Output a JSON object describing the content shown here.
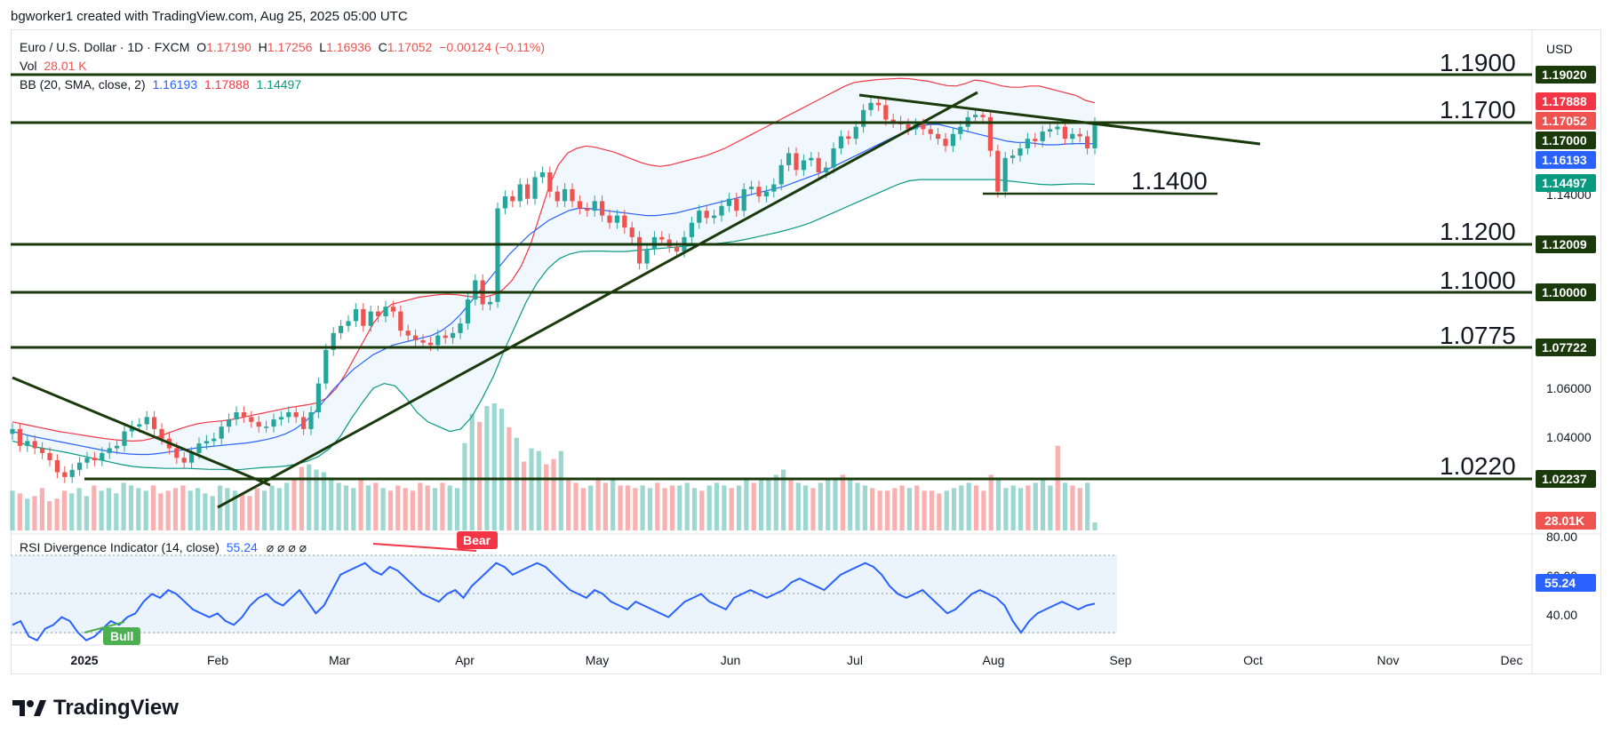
{
  "header": {
    "text": "bgworker1 created with TradingView.com, Aug 25, 2025 05:00 UTC"
  },
  "legend": {
    "symbol": "Euro / U.S. Dollar · 1D · FXCM",
    "o_label": "O",
    "o": "1.17190",
    "h_label": "H",
    "h": "1.17256",
    "l_label": "L",
    "l": "1.16936",
    "c_label": "C",
    "c": "1.17052",
    "change": "−0.00124 (−0.11%)",
    "vol_label": "Vol",
    "vol": "28.01 K",
    "bb_label": "BB (20, SMA, close, 2)",
    "bb_mid": "1.16193",
    "bb_up": "1.17888",
    "bb_low": "1.14497"
  },
  "rsi_legend": {
    "label": "RSI Divergence Indicator (14, close)",
    "value": "55.24",
    "marks": "⌀ ⌀ ⌀ ⌀"
  },
  "footer": {
    "brand": "TradingView"
  },
  "colors": {
    "up": "#26a69a",
    "down": "#ef5350",
    "bb_mid": "#2962ff",
    "bb_up": "#f23645",
    "bb_low": "#089981",
    "line": "#1b3a0c",
    "rsi": "#2962ff"
  },
  "chart_data": {
    "type": "candlestick",
    "currency": "USD",
    "y_ticks": [
      "1.14000",
      "1.06000",
      "1.04000"
    ],
    "x_labels": [
      "2025",
      "Feb",
      "Mar",
      "Apr",
      "May",
      "Jun",
      "Jul",
      "Aug",
      "Sep",
      "Oct",
      "Nov",
      "Dec"
    ],
    "closes": [
      1.043,
      1.036,
      1.038,
      1.035,
      1.033,
      1.03,
      1.025,
      1.023,
      1.026,
      1.029,
      1.031,
      1.03,
      1.033,
      1.035,
      1.036,
      1.042,
      1.044,
      1.045,
      1.048,
      1.043,
      1.039,
      1.035,
      1.031,
      1.029,
      1.033,
      1.037,
      1.038,
      1.039,
      1.044,
      1.047,
      1.05,
      1.048,
      1.046,
      1.044,
      1.044,
      1.047,
      1.048,
      1.05,
      1.048,
      1.043,
      1.05,
      1.062,
      1.076,
      1.083,
      1.086,
      1.088,
      1.093,
      1.086,
      1.092,
      1.09,
      1.094,
      1.092,
      1.084,
      1.082,
      1.08,
      1.079,
      1.078,
      1.082,
      1.081,
      1.083,
      1.087,
      1.097,
      1.105,
      1.095,
      1.096,
      1.135,
      1.14,
      1.138,
      1.145,
      1.139,
      1.148,
      1.15,
      1.142,
      1.138,
      1.143,
      1.138,
      1.135,
      1.134,
      1.138,
      1.132,
      1.129,
      1.132,
      1.127,
      1.123,
      1.112,
      1.118,
      1.123,
      1.122,
      1.119,
      1.117,
      1.123,
      1.129,
      1.134,
      1.131,
      1.132,
      1.136,
      1.139,
      1.134,
      1.143,
      1.144,
      1.14,
      1.142,
      1.145,
      1.153,
      1.158,
      1.151,
      1.155,
      1.156,
      1.15,
      1.152,
      1.16,
      1.165,
      1.164,
      1.169,
      1.176,
      1.179,
      1.178,
      1.172,
      1.171,
      1.17,
      1.168,
      1.17,
      1.168,
      1.166,
      1.164,
      1.161,
      1.166,
      1.169,
      1.173,
      1.174,
      1.173,
      1.159,
      1.142,
      1.156,
      1.157,
      1.16,
      1.164,
      1.163,
      1.167,
      1.168,
      1.169,
      1.164,
      1.166,
      1.165,
      1.16,
      1.1705
    ],
    "volume_last": "28.01K",
    "volume": [
      150,
      140,
      120,
      130,
      160,
      110,
      120,
      150,
      140,
      160,
      130,
      170,
      150,
      160,
      140,
      180,
      170,
      160,
      150,
      170,
      140,
      150,
      160,
      170,
      150,
      160,
      140,
      130,
      170,
      160,
      150,
      140,
      130,
      160,
      150,
      170,
      160,
      180,
      190,
      240,
      250,
      230,
      220,
      200,
      180,
      170,
      160,
      190,
      170,
      180,
      160,
      150,
      170,
      160,
      150,
      180,
      170,
      160,
      180,
      170,
      160,
      330,
      440,
      410,
      470,
      480,
      460,
      390,
      350,
      260,
      310,
      300,
      250,
      270,
      300,
      190,
      180,
      160,
      170,
      200,
      180,
      190,
      170,
      170,
      160,
      170,
      160,
      180,
      160,
      170,
      170,
      180,
      160,
      150,
      170,
      180,
      170,
      160,
      170,
      190,
      180,
      200,
      190,
      210,
      230,
      190,
      180,
      170,
      160,
      180,
      190,
      200,
      210,
      190,
      180,
      170,
      160,
      150,
      150,
      160,
      170,
      160,
      170,
      150,
      150,
      140,
      150,
      160,
      170,
      180,
      170,
      150,
      210,
      200,
      160,
      170,
      160,
      170,
      180,
      190,
      170,
      320,
      180,
      170,
      160,
      180,
      30
    ],
    "bb_upper": [
      1.046,
      1.0452,
      1.0444,
      1.0436,
      1.0428,
      1.042,
      1.0414,
      1.0408,
      1.0402,
      1.0396,
      1.039,
      1.0386,
      1.0382,
      1.038,
      1.0382,
      1.039,
      1.0402,
      1.0416,
      1.043,
      1.0442,
      1.0452,
      1.0458,
      1.0462,
      1.0466,
      1.0472,
      1.048,
      1.0488,
      1.0496,
      1.0504,
      1.0512,
      1.052,
      1.0526,
      1.0532,
      1.054,
      1.056,
      1.06,
      1.066,
      1.073,
      1.08,
      1.087,
      1.092,
      1.095,
      1.096,
      1.097,
      1.098,
      1.0985,
      1.099,
      1.0992,
      1.099,
      1.0985,
      1.098,
      1.098,
      1.099,
      1.101,
      1.105,
      1.111,
      1.12,
      1.132,
      1.144,
      1.153,
      1.158,
      1.16,
      1.161,
      1.1605,
      1.1595,
      1.1585,
      1.157,
      1.1555,
      1.154,
      1.153,
      1.1525,
      1.153,
      1.154,
      1.155,
      1.156,
      1.157,
      1.1585,
      1.16,
      1.162,
      1.164,
      1.166,
      1.168,
      1.17,
      1.172,
      1.174,
      1.176,
      1.178,
      1.18,
      1.182,
      1.184,
      1.186,
      1.1875,
      1.188,
      1.1885,
      1.1888,
      1.189,
      1.1892,
      1.189,
      1.1885,
      1.188,
      1.187,
      1.1862,
      1.186,
      1.187,
      1.1885,
      1.188,
      1.187,
      1.186,
      1.1855,
      1.1855,
      1.186,
      1.186,
      1.185,
      1.184,
      1.183,
      1.182,
      1.18,
      1.179
    ],
    "bb_mid": [
      1.042,
      1.041,
      1.04,
      1.0392,
      1.0384,
      1.0376,
      1.0368,
      1.036,
      1.0352,
      1.0344,
      1.0336,
      1.033,
      1.0326,
      1.0324,
      1.0324,
      1.0328,
      1.0334,
      1.034,
      1.0346,
      1.0352,
      1.0356,
      1.036,
      1.0364,
      1.0368,
      1.0372,
      1.0378,
      1.0386,
      1.0396,
      1.041,
      1.043,
      1.046,
      1.05,
      1.055,
      1.06,
      1.064,
      1.068,
      1.071,
      1.074,
      1.076,
      1.078,
      1.079,
      1.08,
      1.081,
      1.082,
      1.084,
      1.087,
      1.091,
      1.096,
      1.101,
      1.106,
      1.111,
      1.116,
      1.12,
      1.124,
      1.127,
      1.13,
      1.132,
      1.134,
      1.135,
      1.135,
      1.1345,
      1.134,
      1.1335,
      1.133,
      1.1325,
      1.132,
      1.132,
      1.1325,
      1.133,
      1.134,
      1.135,
      1.136,
      1.137,
      1.138,
      1.139,
      1.14,
      1.141,
      1.142,
      1.143,
      1.144,
      1.1455,
      1.147,
      1.1485,
      1.15,
      1.152,
      1.154,
      1.156,
      1.158,
      1.16,
      1.162,
      1.164,
      1.166,
      1.1675,
      1.169,
      1.17,
      1.17,
      1.169,
      1.168,
      1.167,
      1.166,
      1.165,
      1.164,
      1.163,
      1.1625,
      1.1625,
      1.162,
      1.1615,
      1.1615,
      1.1618,
      1.162,
      1.162,
      1.1619
    ],
    "bb_lower": [
      1.038,
      1.0368,
      1.0356,
      1.0348,
      1.034,
      1.0332,
      1.0322,
      1.0312,
      1.0302,
      1.0292,
      1.0282,
      1.0274,
      1.027,
      1.0268,
      1.0266,
      1.0266,
      1.0266,
      1.0264,
      1.0262,
      1.0262,
      1.026,
      1.0262,
      1.0266,
      1.027,
      1.0272,
      1.0276,
      1.0284,
      1.0296,
      1.0316,
      1.0348,
      1.04,
      1.0474,
      1.054,
      1.06,
      1.062,
      1.061,
      1.056,
      1.05,
      1.046,
      1.044,
      1.042,
      1.043,
      1.048,
      1.056,
      1.065,
      1.076,
      1.086,
      1.096,
      1.104,
      1.11,
      1.114,
      1.116,
      1.117,
      1.1172,
      1.1172,
      1.117,
      1.117,
      1.1174,
      1.1178,
      1.1182,
      1.1186,
      1.119,
      1.1194,
      1.1198,
      1.1202,
      1.1206,
      1.1212,
      1.122,
      1.123,
      1.124,
      1.125,
      1.1262,
      1.1275,
      1.129,
      1.131,
      1.133,
      1.135,
      1.137,
      1.139,
      1.141,
      1.143,
      1.145,
      1.1465,
      1.147,
      1.147,
      1.147,
      1.147,
      1.147,
      1.147,
      1.147,
      1.147,
      1.1465,
      1.146,
      1.1455,
      1.145,
      1.1448,
      1.145,
      1.1452,
      1.1452,
      1.145
    ],
    "rsi": [
      44,
      46,
      38,
      36,
      42,
      44,
      48,
      46,
      40,
      36,
      38,
      42,
      46,
      44,
      48,
      50,
      56,
      60,
      58,
      62,
      60,
      56,
      52,
      50,
      48,
      50,
      46,
      44,
      48,
      54,
      58,
      60,
      56,
      54,
      58,
      62,
      56,
      50,
      54,
      62,
      70,
      72,
      74,
      76,
      72,
      70,
      74,
      72,
      68,
      64,
      60,
      58,
      56,
      60,
      62,
      58,
      64,
      68,
      72,
      76,
      74,
      70,
      72,
      74,
      76,
      74,
      70,
      66,
      62,
      60,
      58,
      62,
      60,
      56,
      54,
      52,
      56,
      54,
      52,
      50,
      48,
      52,
      56,
      58,
      60,
      56,
      54,
      52,
      58,
      60,
      62,
      60,
      58,
      60,
      62,
      66,
      68,
      66,
      64,
      62,
      66,
      70,
      72,
      74,
      76,
      74,
      70,
      64,
      60,
      58,
      60,
      62,
      58,
      54,
      50,
      52,
      56,
      60,
      62,
      60,
      58,
      54,
      46,
      40,
      46,
      50,
      52,
      54,
      56,
      54,
      52,
      54,
      55
    ]
  },
  "levels": {
    "l1": "1.1900",
    "l2": "1.1700",
    "l3": "1.1400",
    "l4": "1.1200",
    "l5": "1.1000",
    "l6": "1.0775",
    "l7": "1.0220"
  },
  "price_tags": {
    "t1": "1.19020",
    "t2": "1.17888",
    "t3": "1.17052",
    "t4": "1.17000",
    "t5": "1.16193",
    "t6": "1.14497",
    "t7": "1.12009",
    "t8": "1.10000",
    "t9": "1.07722",
    "t10": "1.02237",
    "t11": "28.01K"
  },
  "rsi_axis": {
    "top": "80.00",
    "mid": "60.00",
    "low": "40.00",
    "value": "55.24"
  },
  "markers": {
    "bull": "Bull",
    "bear": "Bear"
  }
}
